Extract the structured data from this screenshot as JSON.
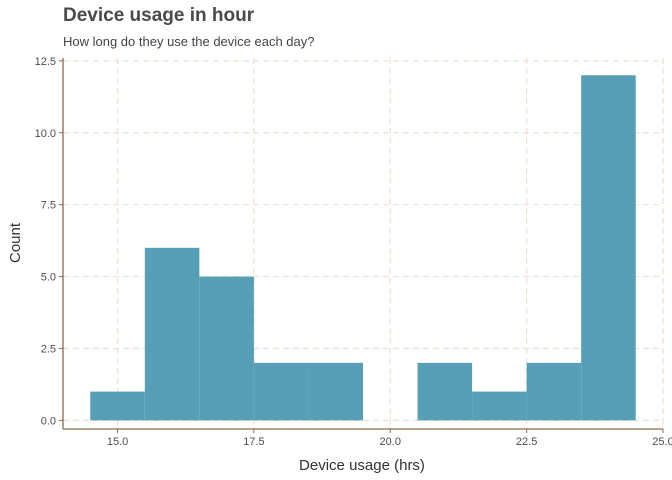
{
  "chart_data": {
    "type": "bar",
    "subtype": "histogram",
    "title": "Device usage in hour",
    "subtitle": "How long do they use the device each day?",
    "xlabel": "Device usage (hrs)",
    "ylabel": "Count",
    "xlim": [
      14,
      25
    ],
    "ylim": [
      -0.3,
      12.6
    ],
    "x_ticks": [
      15,
      17.5,
      20,
      22.5,
      25
    ],
    "x_tick_labels": [
      "15.0",
      "17.5",
      "20.0",
      "22.5",
      "25.0"
    ],
    "y_ticks": [
      0,
      2.5,
      5,
      7.5,
      10,
      12.5
    ],
    "y_tick_labels": [
      "0.0",
      "2.5",
      "5.0",
      "7.5",
      "10.0",
      "12.5"
    ],
    "bin_width": 1,
    "bins": [
      {
        "start": 14.5,
        "end": 15.5,
        "count": 1
      },
      {
        "start": 15.5,
        "end": 16.5,
        "count": 6
      },
      {
        "start": 16.5,
        "end": 17.5,
        "count": 5
      },
      {
        "start": 17.5,
        "end": 18.5,
        "count": 2
      },
      {
        "start": 18.5,
        "end": 19.5,
        "count": 2
      },
      {
        "start": 19.5,
        "end": 20.5,
        "count": 0
      },
      {
        "start": 20.5,
        "end": 21.5,
        "count": 2
      },
      {
        "start": 21.5,
        "end": 22.5,
        "count": 1
      },
      {
        "start": 22.5,
        "end": 23.5,
        "count": 2
      },
      {
        "start": 23.5,
        "end": 24.5,
        "count": 12
      }
    ],
    "bar_color": "#569fb7",
    "axis_color": "#8b6b4e",
    "grid_color": "#ede0d3",
    "grid": true,
    "grid_style": "dashed"
  }
}
